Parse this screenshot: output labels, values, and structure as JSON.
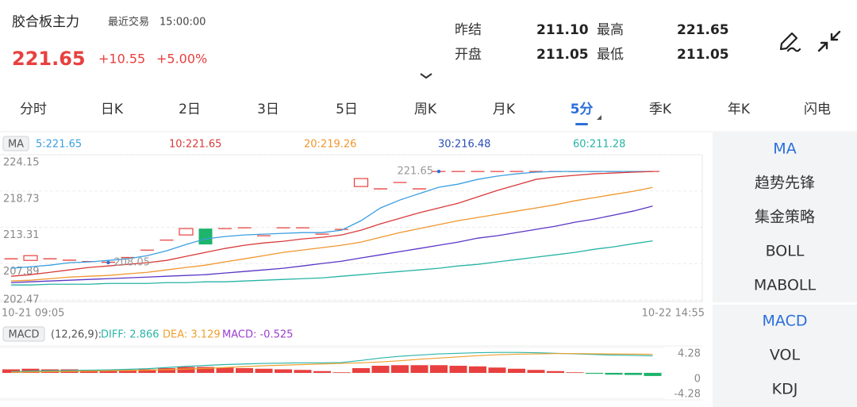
{
  "header": {
    "name": "胶合板主力",
    "last_trade_label": "最近交易",
    "last_trade_time": "15:00:00",
    "price": "221.65",
    "change": "+10.55",
    "change_pct": "+5.00%",
    "stats": [
      [
        {
          "label": "昨结",
          "value": "211.10"
        },
        {
          "label": "最高",
          "value": "221.65"
        }
      ],
      [
        {
          "label": "开盘",
          "value": "211.05"
        },
        {
          "label": "最低",
          "value": "211.05"
        }
      ]
    ]
  },
  "tabs": {
    "items": [
      "分时",
      "日K",
      "2日",
      "3日",
      "5日",
      "周K",
      "月K",
      "5分",
      "季K",
      "年K",
      "闪电"
    ],
    "selected": 7
  },
  "side_menu": {
    "groups": [
      [
        {
          "label": "MA",
          "active": true
        },
        {
          "label": "趋势先锋",
          "active": false
        },
        {
          "label": "集金策略",
          "active": false
        },
        {
          "label": "BOLL",
          "active": false
        },
        {
          "label": "MABOLL",
          "active": false
        }
      ],
      [
        {
          "label": "MACD",
          "active": true
        },
        {
          "label": "VOL",
          "active": false
        },
        {
          "label": "KDJ",
          "active": false
        }
      ]
    ]
  },
  "chart_data": [
    {
      "type": "candlestick",
      "indicator": "MA",
      "categories": [
        "10-21 09:05",
        null,
        null,
        null,
        null,
        null,
        null,
        null,
        null,
        null,
        null,
        null,
        null,
        null,
        null,
        null,
        null,
        null,
        null,
        null,
        null,
        null,
        null,
        null,
        null,
        null,
        null,
        null,
        null,
        null,
        null,
        null,
        null,
        "10-22 14:55"
      ],
      "open": [
        208.61,
        208.37,
        208.61,
        208.4,
        208.2,
        208.1,
        208.8,
        209.9,
        211.4,
        212.17,
        213.12,
        213.12,
        213.24,
        212.05,
        213.24,
        213.24,
        212.29,
        213.0,
        219.4,
        219.05,
        220.0,
        219.05,
        221.65,
        221.65,
        221.65,
        221.65,
        221.65,
        221.65,
        221.65,
        221.65,
        221.65,
        221.65,
        221.65,
        221.65
      ],
      "close": [
        208.61,
        209.08,
        208.61,
        208.4,
        208.2,
        208.1,
        208.8,
        209.9,
        211.4,
        213.12,
        210.75,
        213.12,
        213.24,
        212.05,
        213.24,
        213.24,
        212.29,
        213.0,
        220.59,
        219.05,
        220.0,
        219.05,
        221.65,
        221.65,
        221.65,
        221.65,
        221.65,
        221.65,
        221.65,
        221.65,
        221.65,
        221.65,
        221.65,
        221.65
      ],
      "up_color": "#e8403f",
      "down_color": "#1db46c",
      "annotations": [
        {
          "index": 22,
          "value": 221.65
        },
        {
          "index": 5,
          "value": 208.05
        }
      ],
      "series": [
        {
          "name": "5",
          "legend_label": "5:221.65",
          "color": "#3b9fe0",
          "values": [
            207.19,
            207.42,
            207.66,
            208.02,
            208.14,
            208.37,
            208.61,
            209.08,
            209.8,
            210.75,
            211.58,
            211.93,
            212.17,
            212.29,
            212.41,
            212.52,
            212.52,
            212.88,
            214.3,
            216.2,
            217.39,
            218.34,
            219.29,
            219.76,
            220.47,
            220.95,
            221.3,
            221.54,
            221.65,
            221.65,
            221.65,
            221.65,
            221.65,
            221.65
          ]
        },
        {
          "name": "10",
          "legend_label": "10:221.65",
          "color": "#d93a3a",
          "values": [
            206.0,
            206.24,
            206.59,
            206.95,
            207.31,
            207.54,
            207.78,
            208.02,
            208.37,
            208.97,
            209.56,
            210.15,
            210.63,
            210.98,
            211.22,
            211.58,
            211.81,
            212.17,
            212.88,
            213.83,
            214.66,
            215.49,
            216.2,
            216.91,
            217.86,
            218.81,
            219.64,
            220.47,
            220.83,
            221.07,
            221.3,
            221.42,
            221.54,
            221.65
          ]
        },
        {
          "name": "20",
          "legend_label": "20:219.26",
          "color": "#f0962e",
          "values": [
            205.29,
            205.41,
            205.64,
            205.88,
            206.0,
            206.12,
            206.36,
            206.59,
            206.95,
            207.31,
            207.66,
            208.14,
            208.61,
            209.08,
            209.56,
            209.92,
            210.27,
            210.63,
            211.1,
            211.81,
            212.52,
            213.12,
            213.71,
            214.3,
            214.78,
            215.25,
            215.73,
            216.2,
            216.68,
            217.27,
            217.74,
            218.22,
            218.69,
            219.26
          ]
        },
        {
          "name": "30",
          "legend_label": "30:216.48",
          "color": "#5b35c6",
          "legend_color": "#2a4db8",
          "values": [
            205.05,
            205.17,
            205.29,
            205.41,
            205.53,
            205.64,
            205.76,
            205.88,
            206.0,
            206.12,
            206.24,
            206.48,
            206.71,
            206.95,
            207.19,
            207.54,
            207.9,
            208.25,
            208.73,
            209.2,
            209.68,
            210.15,
            210.63,
            211.1,
            211.69,
            212.05,
            212.52,
            213.0,
            213.47,
            214.07,
            214.54,
            215.13,
            215.73,
            216.48
          ]
        },
        {
          "name": "60",
          "legend_label": "60:211.28",
          "color": "#27b3a5",
          "values": [
            204.7,
            204.7,
            204.81,
            204.81,
            204.81,
            204.93,
            204.93,
            204.93,
            205.05,
            205.05,
            205.17,
            205.17,
            205.29,
            205.41,
            205.53,
            205.64,
            205.76,
            206.0,
            206.24,
            206.48,
            206.71,
            206.95,
            207.19,
            207.54,
            207.78,
            208.14,
            208.49,
            208.85,
            209.2,
            209.56,
            210.03,
            210.39,
            210.86,
            211.28
          ]
        }
      ],
      "ylim": [
        202.47,
        224.15
      ],
      "yticks": [
        224.15,
        218.73,
        213.31,
        207.89,
        202.47
      ],
      "grid": true
    },
    {
      "type": "macd",
      "indicator": "MACD",
      "params": "(12,26,9):",
      "series": [
        {
          "name": "DIFF",
          "legend_label": "DIFF: 2.866",
          "color": "#2bb5a8",
          "kind": "line",
          "values": [
            0.2,
            0.3,
            0.35,
            0.4,
            0.45,
            0.5,
            0.6,
            0.7,
            0.9,
            1.1,
            1.25,
            1.4,
            1.5,
            1.6,
            1.65,
            1.7,
            1.7,
            1.75,
            2.1,
            2.5,
            2.8,
            3.0,
            3.2,
            3.3,
            3.4,
            3.45,
            3.45,
            3.4,
            3.3,
            3.2,
            3.1,
            3.0,
            2.95,
            2.866
          ]
        },
        {
          "name": "DEA",
          "legend_label": "DEA: 3.129",
          "color": "#f0a02e",
          "kind": "line",
          "values": [
            0.1,
            0.15,
            0.2,
            0.25,
            0.3,
            0.35,
            0.4,
            0.45,
            0.55,
            0.65,
            0.75,
            0.9,
            1.05,
            1.2,
            1.3,
            1.4,
            1.5,
            1.6,
            1.7,
            1.85,
            2.05,
            2.3,
            2.5,
            2.7,
            2.9,
            3.05,
            3.15,
            3.2,
            3.25,
            3.25,
            3.22,
            3.19,
            3.16,
            3.129
          ]
        },
        {
          "name": "MACD",
          "legend_label": "MACD: -0.525",
          "color": "#9b3fd0",
          "kind": "bar",
          "up_color": "#e8403f",
          "down_color": "#1db46c",
          "values": [
            0.6,
            0.7,
            0.6,
            0.6,
            0.5,
            0.5,
            0.5,
            0.6,
            0.8,
            1.0,
            1.0,
            0.9,
            0.8,
            0.7,
            0.6,
            0.5,
            0.3,
            0.1,
            0.8,
            1.2,
            1.3,
            1.3,
            1.3,
            1.2,
            1.1,
            0.9,
            0.7,
            0.5,
            0.3,
            0.1,
            -0.15,
            -0.3,
            -0.35,
            -0.525
          ]
        }
      ],
      "ylim": [
        -4.28,
        4.28
      ],
      "yticks": [
        4.28,
        0,
        -4.28
      ]
    }
  ]
}
